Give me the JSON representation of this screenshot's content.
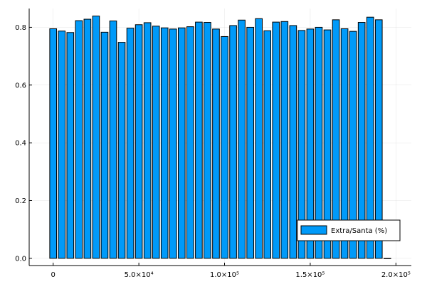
{
  "chart_data": {
    "type": "bar",
    "title": "",
    "xlabel": "",
    "ylabel": "",
    "xlim": [
      -14000,
      209000
    ],
    "ylim": [
      -0.025,
      0.865
    ],
    "grid": true,
    "legend_position": "bottom-right",
    "x_ticks": [
      {
        "value": 0,
        "label": "0"
      },
      {
        "value": 50000,
        "label": "5.0×10⁴"
      },
      {
        "value": 100000,
        "label": "1.0×10⁵"
      },
      {
        "value": 150000,
        "label": "1.5×10⁵"
      },
      {
        "value": 200000,
        "label": "2.0×10⁵"
      }
    ],
    "y_ticks": [
      {
        "value": 0.0,
        "label": "0.0"
      },
      {
        "value": 0.2,
        "label": "0.2"
      },
      {
        "value": 0.4,
        "label": "0.4"
      },
      {
        "value": 0.6,
        "label": "0.6"
      },
      {
        "value": 0.8,
        "label": "0.8"
      }
    ],
    "bar_width": 4000,
    "series": [
      {
        "name": "Extra/Santa (%)",
        "color": "#009AF9",
        "x": [
          0,
          5000,
          10000,
          15000,
          20000,
          25000,
          30000,
          35000,
          40000,
          45000,
          50000,
          55000,
          60000,
          65000,
          70000,
          75000,
          80000,
          85000,
          90000,
          95000,
          100000,
          105000,
          110000,
          115000,
          120000,
          125000,
          130000,
          135000,
          140000,
          145000,
          150000,
          155000,
          160000,
          165000,
          170000,
          175000,
          180000,
          185000,
          190000,
          195000
        ],
        "values": [
          0.795,
          0.787,
          0.782,
          0.823,
          0.828,
          0.839,
          0.783,
          0.822,
          0.748,
          0.797,
          0.809,
          0.816,
          0.804,
          0.798,
          0.794,
          0.798,
          0.802,
          0.818,
          0.817,
          0.794,
          0.768,
          0.806,
          0.825,
          0.8,
          0.83,
          0.788,
          0.818,
          0.82,
          0.806,
          0.789,
          0.794,
          0.8,
          0.791,
          0.826,
          0.795,
          0.786,
          0.817,
          0.835,
          0.826,
          0.0
        ]
      }
    ]
  }
}
